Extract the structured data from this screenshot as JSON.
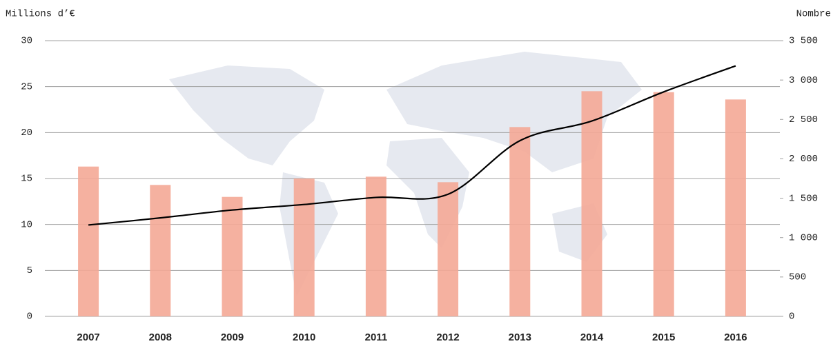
{
  "chart_data": {
    "type": "bar_line",
    "y_label": "Millions d’€",
    "y2_label": "Nombre",
    "categories": [
      "2007",
      "2008",
      "2009",
      "2010",
      "2011",
      "2012",
      "2013",
      "2014",
      "2015",
      "2016"
    ],
    "series": [
      {
        "type": "bar",
        "color": "#f4a896",
        "axis": "y",
        "values": [
          16.3,
          14.3,
          13.0,
          15.0,
          15.2,
          14.6,
          20.6,
          24.5,
          24.4,
          23.6
        ]
      },
      {
        "type": "line",
        "color": "#000000",
        "axis": "y2",
        "values": [
          1160,
          1250,
          1350,
          1420,
          1510,
          1550,
          2230,
          2480,
          2850,
          3180
        ]
      }
    ],
    "ylim": [
      0,
      30
    ],
    "yticks": [
      0,
      5,
      10,
      15,
      20,
      25,
      30
    ],
    "y2lim": [
      0,
      3500
    ],
    "y2ticks": [
      0,
      500,
      {
        "value": 1000,
        "label": "1 000"
      },
      {
        "value": 1500,
        "label": "1 500"
      },
      {
        "value": 2000,
        "label": "2 000"
      },
      {
        "value": 2500,
        "label": "2 500"
      },
      {
        "value": 3000,
        "label": "3 000"
      },
      {
        "value": 3500,
        "label": "3 500"
      }
    ],
    "grid": true
  }
}
